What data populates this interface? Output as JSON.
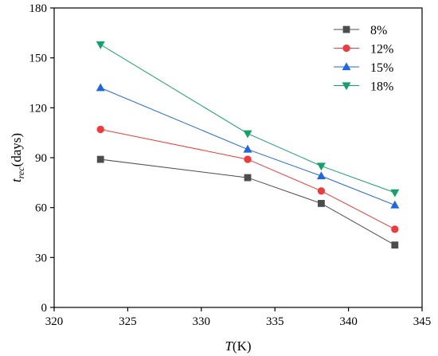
{
  "chart_data": {
    "type": "line",
    "xlabel": "T(K)",
    "ylabel": "t_rec(days)",
    "xlim": [
      320,
      345
    ],
    "ylim": [
      0,
      180
    ],
    "xticks": [
      320,
      325,
      330,
      335,
      340,
      345
    ],
    "yticks": [
      0,
      30,
      60,
      90,
      120,
      150,
      180
    ],
    "x": [
      323.15,
      333.15,
      338.15,
      343.15
    ],
    "legend_position": "top-right",
    "series": [
      {
        "name": "8%",
        "color": "#4d4d4d",
        "marker": "square",
        "values": [
          89,
          78,
          62.5,
          37.5
        ]
      },
      {
        "name": "12%",
        "color": "#ef3b3b",
        "marker": "circle",
        "values": [
          107,
          89,
          70,
          47
        ]
      },
      {
        "name": "15%",
        "color": "#1f66e0",
        "marker": "triangle-up",
        "values": [
          132,
          95,
          79,
          61.5
        ]
      },
      {
        "name": "18%",
        "color": "#16a06a",
        "marker": "triangle-down",
        "values": [
          158,
          104.5,
          85,
          69
        ]
      }
    ]
  }
}
